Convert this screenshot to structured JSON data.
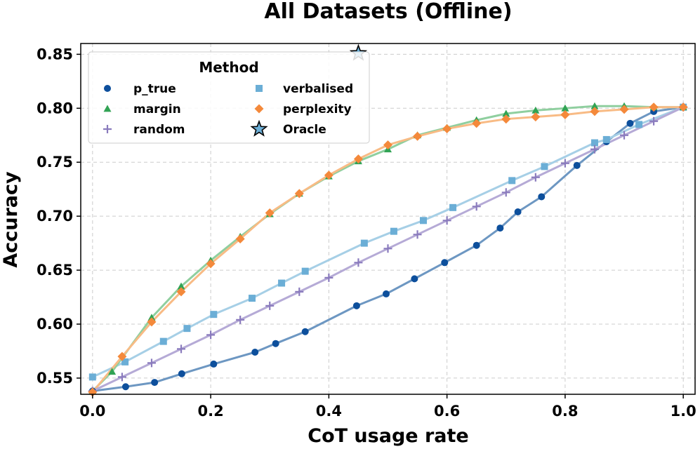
{
  "chart_data": {
    "type": "line",
    "title": "All Datasets (Offline)",
    "xlabel": "CoT usage rate",
    "ylabel": "Accuracy",
    "xlim": [
      -0.02,
      1.02
    ],
    "ylim": [
      0.535,
      0.86
    ],
    "xticks": [
      0.0,
      0.2,
      0.4,
      0.6,
      0.8,
      1.0
    ],
    "xtick_labels": [
      "0.0",
      "0.2",
      "0.4",
      "0.6",
      "0.8",
      "1.0"
    ],
    "yticks": [
      0.55,
      0.6,
      0.65,
      0.7,
      0.75,
      0.8,
      0.85
    ],
    "ytick_labels": [
      "0.55",
      "0.60",
      "0.65",
      "0.70",
      "0.75",
      "0.80",
      "0.85"
    ],
    "grid": true,
    "legend": {
      "title": "Method",
      "placement": "top-left",
      "columns": 2
    },
    "series": [
      {
        "name": "p_true",
        "marker": "circle",
        "color": "#0d4f9c",
        "line_color": "#6d97c2",
        "points": [
          [
            0.0,
            0.538
          ],
          [
            0.056,
            0.542
          ],
          [
            0.105,
            0.546
          ],
          [
            0.151,
            0.554
          ],
          [
            0.205,
            0.563
          ],
          [
            0.275,
            0.574
          ],
          [
            0.31,
            0.582
          ],
          [
            0.36,
            0.593
          ],
          [
            0.447,
            0.617
          ],
          [
            0.497,
            0.628
          ],
          [
            0.545,
            0.642
          ],
          [
            0.596,
            0.657
          ],
          [
            0.65,
            0.673
          ],
          [
            0.69,
            0.689
          ],
          [
            0.72,
            0.704
          ],
          [
            0.76,
            0.718
          ],
          [
            0.82,
            0.747
          ],
          [
            0.87,
            0.769
          ],
          [
            0.91,
            0.786
          ],
          [
            0.95,
            0.797
          ],
          [
            1.0,
            0.801
          ]
        ]
      },
      {
        "name": "verbalised",
        "marker": "square",
        "color": "#6baed6",
        "line_color": "#a6cfe6",
        "points": [
          [
            0.0,
            0.551
          ],
          [
            0.055,
            0.565
          ],
          [
            0.12,
            0.584
          ],
          [
            0.16,
            0.596
          ],
          [
            0.205,
            0.609
          ],
          [
            0.27,
            0.624
          ],
          [
            0.32,
            0.638
          ],
          [
            0.36,
            0.649
          ],
          [
            0.46,
            0.675
          ],
          [
            0.51,
            0.686
          ],
          [
            0.56,
            0.696
          ],
          [
            0.61,
            0.708
          ],
          [
            0.71,
            0.733
          ],
          [
            0.765,
            0.746
          ],
          [
            0.85,
            0.768
          ],
          [
            0.87,
            0.771
          ],
          [
            0.925,
            0.785
          ],
          [
            1.0,
            0.801
          ]
        ]
      },
      {
        "name": "margin",
        "marker": "triangle",
        "color": "#31a354",
        "line_color": "#8fcf9f",
        "points": [
          [
            0.0,
            0.538
          ],
          [
            0.033,
            0.556
          ],
          [
            0.1,
            0.606
          ],
          [
            0.15,
            0.635
          ],
          [
            0.2,
            0.659
          ],
          [
            0.25,
            0.681
          ],
          [
            0.3,
            0.702
          ],
          [
            0.35,
            0.721
          ],
          [
            0.4,
            0.737
          ],
          [
            0.45,
            0.751
          ],
          [
            0.5,
            0.762
          ],
          [
            0.55,
            0.775
          ],
          [
            0.6,
            0.782
          ],
          [
            0.65,
            0.789
          ],
          [
            0.7,
            0.795
          ],
          [
            0.75,
            0.798
          ],
          [
            0.8,
            0.8
          ],
          [
            0.85,
            0.802
          ],
          [
            0.9,
            0.802
          ],
          [
            0.95,
            0.801
          ],
          [
            1.0,
            0.801
          ]
        ]
      },
      {
        "name": "perplexity",
        "marker": "diamond",
        "color": "#f4893b",
        "line_color": "#f8bb85",
        "points": [
          [
            0.0,
            0.537
          ],
          [
            0.05,
            0.57
          ],
          [
            0.1,
            0.602
          ],
          [
            0.15,
            0.63
          ],
          [
            0.2,
            0.656
          ],
          [
            0.25,
            0.679
          ],
          [
            0.3,
            0.703
          ],
          [
            0.35,
            0.721
          ],
          [
            0.4,
            0.738
          ],
          [
            0.45,
            0.753
          ],
          [
            0.5,
            0.766
          ],
          [
            0.55,
            0.774
          ],
          [
            0.6,
            0.781
          ],
          [
            0.65,
            0.786
          ],
          [
            0.7,
            0.79
          ],
          [
            0.75,
            0.792
          ],
          [
            0.8,
            0.794
          ],
          [
            0.85,
            0.797
          ],
          [
            0.9,
            0.799
          ],
          [
            0.95,
            0.801
          ],
          [
            1.0,
            0.801
          ]
        ]
      },
      {
        "name": "random",
        "marker": "plus",
        "color": "#8a7bbd",
        "line_color": "#b5aad6",
        "points": [
          [
            0.0,
            0.538
          ],
          [
            0.05,
            0.551
          ],
          [
            0.1,
            0.564
          ],
          [
            0.15,
            0.577
          ],
          [
            0.2,
            0.59
          ],
          [
            0.25,
            0.604
          ],
          [
            0.3,
            0.617
          ],
          [
            0.35,
            0.63
          ],
          [
            0.4,
            0.643
          ],
          [
            0.45,
            0.657
          ],
          [
            0.5,
            0.67
          ],
          [
            0.55,
            0.683
          ],
          [
            0.6,
            0.696
          ],
          [
            0.65,
            0.709
          ],
          [
            0.7,
            0.722
          ],
          [
            0.75,
            0.736
          ],
          [
            0.8,
            0.749
          ],
          [
            0.85,
            0.762
          ],
          [
            0.9,
            0.775
          ],
          [
            0.95,
            0.788
          ],
          [
            1.0,
            0.801
          ]
        ]
      },
      {
        "name": "Oracle",
        "marker": "star",
        "color": "#6baed6",
        "points": [
          [
            0.45,
            0.851
          ]
        ]
      }
    ]
  }
}
